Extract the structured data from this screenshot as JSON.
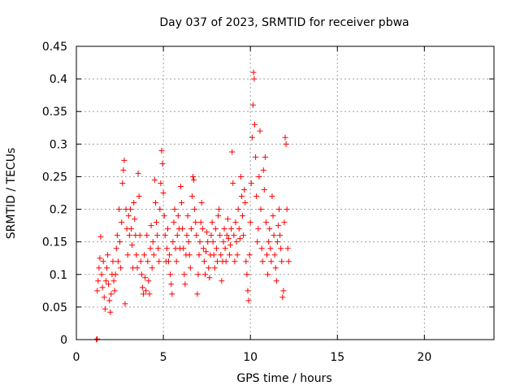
{
  "chart_data": {
    "type": "scatter",
    "title": "Day 037 of 2023, SRMTID for receiver pbwa",
    "xlabel": "GPS time / hours",
    "ylabel": "SRMTID / TECUs",
    "xlim": [
      0,
      24
    ],
    "ylim": [
      0,
      0.45
    ],
    "xticks": [
      0,
      5,
      10,
      15,
      20
    ],
    "yticks": [
      0,
      0.05,
      0.1,
      0.15,
      0.2,
      0.25,
      0.3,
      0.35,
      0.4,
      0.45
    ],
    "xtick_labels": [
      "0",
      "5",
      "10",
      "15",
      "20"
    ],
    "ytick_labels": [
      "0",
      "0.05",
      "0.1",
      "0.15",
      "0.2",
      "0.25",
      "0.3",
      "0.35",
      "0.4",
      "0.45"
    ],
    "grid": true,
    "marker": "plus",
    "colors": {
      "points": "#ff0000",
      "grid": "#a0a0a0",
      "axes": "#000000"
    },
    "series": [
      {
        "values": [
          [
            1.15,
            0.0
          ],
          [
            1.2,
            0.001
          ],
          [
            1.2,
            0.075
          ],
          [
            1.25,
            0.09
          ],
          [
            1.3,
            0.11
          ],
          [
            1.35,
            0.125
          ],
          [
            1.4,
            0.158
          ],
          [
            1.45,
            0.1
          ],
          [
            1.5,
            0.08
          ],
          [
            1.55,
            0.12
          ],
          [
            1.6,
            0.065
          ],
          [
            1.65,
            0.047
          ],
          [
            1.7,
            0.09
          ],
          [
            1.75,
            0.11
          ],
          [
            1.8,
            0.13
          ],
          [
            1.85,
            0.085
          ],
          [
            1.9,
            0.06
          ],
          [
            1.95,
            0.042
          ],
          [
            2.0,
            0.07
          ],
          [
            2.05,
            0.1
          ],
          [
            2.1,
            0.12
          ],
          [
            2.15,
            0.09
          ],
          [
            2.2,
            0.075
          ],
          [
            2.25,
            0.1
          ],
          [
            2.3,
            0.14
          ],
          [
            2.35,
            0.16
          ],
          [
            2.4,
            0.12
          ],
          [
            2.45,
            0.2
          ],
          [
            2.5,
            0.15
          ],
          [
            2.55,
            0.11
          ],
          [
            2.6,
            0.18
          ],
          [
            2.65,
            0.24
          ],
          [
            2.7,
            0.26
          ],
          [
            2.75,
            0.275
          ],
          [
            2.8,
            0.055
          ],
          [
            2.85,
            0.2
          ],
          [
            2.9,
            0.17
          ],
          [
            2.95,
            0.13
          ],
          [
            3.0,
            0.19
          ],
          [
            3.05,
            0.16
          ],
          [
            3.1,
            0.2
          ],
          [
            3.15,
            0.17
          ],
          [
            3.2,
            0.145
          ],
          [
            3.25,
            0.11
          ],
          [
            3.3,
            0.21
          ],
          [
            3.35,
            0.185
          ],
          [
            3.4,
            0.16
          ],
          [
            3.45,
            0.13
          ],
          [
            3.5,
            0.11
          ],
          [
            3.55,
            0.255
          ],
          [
            3.6,
            0.22
          ],
          [
            3.65,
            0.16
          ],
          [
            3.7,
            0.12
          ],
          [
            3.75,
            0.1
          ],
          [
            3.8,
            0.08
          ],
          [
            3.85,
            0.07
          ],
          [
            3.9,
            0.13
          ],
          [
            3.95,
            0.095
          ],
          [
            4.0,
            0.075
          ],
          [
            4.05,
            0.16
          ],
          [
            4.1,
            0.12
          ],
          [
            4.15,
            0.09
          ],
          [
            4.2,
            0.07
          ],
          [
            4.25,
            0.14
          ],
          [
            4.3,
            0.175
          ],
          [
            4.35,
            0.11
          ],
          [
            4.4,
            0.15
          ],
          [
            4.45,
            0.13
          ],
          [
            4.5,
            0.245
          ],
          [
            4.55,
            0.21
          ],
          [
            4.6,
            0.18
          ],
          [
            4.65,
            0.16
          ],
          [
            4.7,
            0.14
          ],
          [
            4.75,
            0.12
          ],
          [
            4.8,
            0.2
          ],
          [
            4.85,
            0.24
          ],
          [
            4.9,
            0.29
          ],
          [
            4.95,
            0.27
          ],
          [
            5.0,
            0.225
          ],
          [
            5.05,
            0.19
          ],
          [
            5.1,
            0.16
          ],
          [
            5.15,
            0.12
          ],
          [
            5.2,
            0.14
          ],
          [
            5.25,
            0.17
          ],
          [
            5.3,
            0.12
          ],
          [
            5.35,
            0.13
          ],
          [
            5.4,
            0.1
          ],
          [
            5.45,
            0.085
          ],
          [
            5.5,
            0.07
          ],
          [
            5.55,
            0.15
          ],
          [
            5.6,
            0.18
          ],
          [
            5.65,
            0.2
          ],
          [
            5.7,
            0.14
          ],
          [
            5.75,
            0.12
          ],
          [
            5.8,
            0.16
          ],
          [
            5.85,
            0.19
          ],
          [
            5.9,
            0.17
          ],
          [
            5.95,
            0.14
          ],
          [
            6.0,
            0.235
          ],
          [
            6.05,
            0.21
          ],
          [
            6.1,
            0.17
          ],
          [
            6.15,
            0.14
          ],
          [
            6.2,
            0.1
          ],
          [
            6.25,
            0.085
          ],
          [
            6.3,
            0.13
          ],
          [
            6.35,
            0.16
          ],
          [
            6.4,
            0.19
          ],
          [
            6.45,
            0.15
          ],
          [
            6.5,
            0.13
          ],
          [
            6.55,
            0.11
          ],
          [
            6.6,
            0.17
          ],
          [
            6.65,
            0.22
          ],
          [
            6.7,
            0.25
          ],
          [
            6.75,
            0.245
          ],
          [
            6.8,
            0.2
          ],
          [
            6.85,
            0.18
          ],
          [
            6.9,
            0.16
          ],
          [
            6.95,
            0.07
          ],
          [
            7.0,
            0.1
          ],
          [
            7.05,
            0.13
          ],
          [
            7.1,
            0.15
          ],
          [
            7.15,
            0.18
          ],
          [
            7.2,
            0.21
          ],
          [
            7.25,
            0.17
          ],
          [
            7.3,
            0.14
          ],
          [
            7.35,
            0.12
          ],
          [
            7.4,
            0.1
          ],
          [
            7.45,
            0.135
          ],
          [
            7.5,
            0.165
          ],
          [
            7.55,
            0.15
          ],
          [
            7.6,
            0.11
          ],
          [
            7.65,
            0.095
          ],
          [
            7.7,
            0.13
          ],
          [
            7.75,
            0.16
          ],
          [
            7.8,
            0.18
          ],
          [
            7.85,
            0.15
          ],
          [
            7.9,
            0.13
          ],
          [
            7.95,
            0.11
          ],
          [
            8.0,
            0.17
          ],
          [
            8.05,
            0.14
          ],
          [
            8.1,
            0.12
          ],
          [
            8.15,
            0.19
          ],
          [
            8.2,
            0.2
          ],
          [
            8.25,
            0.16
          ],
          [
            8.3,
            0.13
          ],
          [
            8.35,
            0.09
          ],
          [
            8.4,
            0.12
          ],
          [
            8.45,
            0.15
          ],
          [
            8.5,
            0.17
          ],
          [
            8.55,
            0.14
          ],
          [
            8.6,
            0.12
          ],
          [
            8.65,
            0.16
          ],
          [
            8.7,
            0.185
          ],
          [
            8.75,
            0.155
          ],
          [
            8.8,
            0.13
          ],
          [
            8.85,
            0.145
          ],
          [
            8.9,
            0.17
          ],
          [
            8.95,
            0.288
          ],
          [
            9.0,
            0.24
          ],
          [
            9.05,
            0.16
          ],
          [
            9.1,
            0.12
          ],
          [
            9.15,
            0.18
          ],
          [
            9.2,
            0.15
          ],
          [
            9.25,
            0.13
          ],
          [
            9.3,
            0.2
          ],
          [
            9.35,
            0.17
          ],
          [
            9.4,
            0.155
          ],
          [
            9.45,
            0.25
          ],
          [
            9.5,
            0.22
          ],
          [
            9.55,
            0.19
          ],
          [
            9.6,
            0.16
          ],
          [
            9.65,
            0.23
          ],
          [
            9.7,
            0.21
          ],
          [
            9.75,
            0.12
          ],
          [
            9.8,
            0.1
          ],
          [
            9.85,
            0.075
          ],
          [
            9.9,
            0.06
          ],
          [
            9.95,
            0.13
          ],
          [
            10.0,
            0.18
          ],
          [
            10.05,
            0.24
          ],
          [
            10.1,
            0.31
          ],
          [
            10.15,
            0.36
          ],
          [
            10.18,
            0.41
          ],
          [
            10.22,
            0.4
          ],
          [
            10.25,
            0.33
          ],
          [
            10.3,
            0.28
          ],
          [
            10.35,
            0.22
          ],
          [
            10.4,
            0.15
          ],
          [
            10.45,
            0.17
          ],
          [
            10.5,
            0.25
          ],
          [
            10.55,
            0.32
          ],
          [
            10.6,
            0.2
          ],
          [
            10.65,
            0.14
          ],
          [
            10.7,
            0.12
          ],
          [
            10.75,
            0.26
          ],
          [
            10.8,
            0.23
          ],
          [
            10.85,
            0.28
          ],
          [
            10.9,
            0.18
          ],
          [
            10.95,
            0.13
          ],
          [
            11.0,
            0.1
          ],
          [
            11.05,
            0.15
          ],
          [
            11.1,
            0.17
          ],
          [
            11.15,
            0.14
          ],
          [
            11.2,
            0.12
          ],
          [
            11.25,
            0.22
          ],
          [
            11.3,
            0.19
          ],
          [
            11.35,
            0.16
          ],
          [
            11.4,
            0.13
          ],
          [
            11.45,
            0.11
          ],
          [
            11.5,
            0.09
          ],
          [
            11.55,
            0.15
          ],
          [
            11.6,
            0.175
          ],
          [
            11.65,
            0.2
          ],
          [
            11.7,
            0.16
          ],
          [
            11.75,
            0.14
          ],
          [
            11.8,
            0.12
          ],
          [
            11.85,
            0.065
          ],
          [
            11.9,
            0.075
          ],
          [
            11.95,
            0.18
          ],
          [
            12.0,
            0.31
          ],
          [
            12.05,
            0.3
          ],
          [
            12.1,
            0.2
          ],
          [
            12.15,
            0.14
          ],
          [
            12.2,
            0.12
          ]
        ]
      }
    ]
  }
}
